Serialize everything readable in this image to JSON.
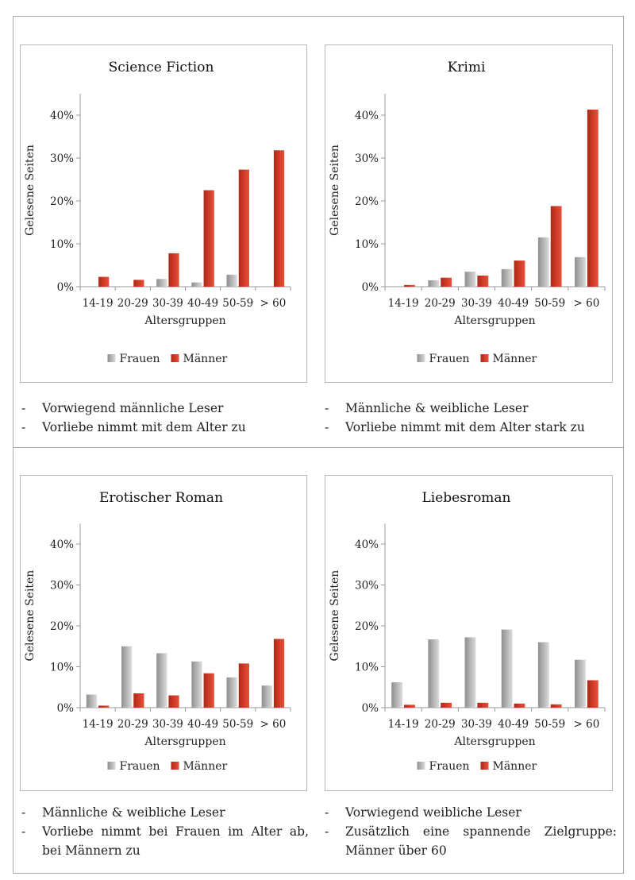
{
  "colors": {
    "frauen": "#b5b5b5",
    "maenner": "#d23a26",
    "axis": "#9a9a9a"
  },
  "shared": {
    "ylabel": "Gelesene Seiten",
    "xlabel": "Altersgruppen",
    "yticks": [
      "0%",
      "10%",
      "20%",
      "30%",
      "40%"
    ],
    "legend": [
      "Frauen",
      "Männer"
    ]
  },
  "chart_data": [
    {
      "type": "bar",
      "title": "Science Fiction",
      "categories": [
        "14-19",
        "20-29",
        "30-39",
        "40-49",
        "50-59",
        "> 60"
      ],
      "series": [
        {
          "name": "Frauen",
          "values": [
            0,
            0,
            1.8,
            1.0,
            2.8,
            0
          ]
        },
        {
          "name": "Männer",
          "values": [
            2.3,
            1.6,
            7.8,
            22.5,
            27.3,
            31.8
          ]
        }
      ],
      "xlabel": "Altersgruppen",
      "ylabel": "Gelesene Seiten",
      "ylim": [
        0,
        45
      ],
      "grid": false,
      "legend": "bottom"
    },
    {
      "type": "bar",
      "title": "Krimi",
      "categories": [
        "14-19",
        "20-29",
        "30-39",
        "40-49",
        "50-59",
        "> 60"
      ],
      "series": [
        {
          "name": "Frauen",
          "values": [
            0,
            1.5,
            3.5,
            4.1,
            11.5,
            6.9
          ]
        },
        {
          "name": "Männer",
          "values": [
            0.4,
            2.1,
            2.6,
            6.1,
            18.8,
            41.3
          ]
        }
      ],
      "xlabel": "Altersgruppen",
      "ylabel": "Gelesene Seiten",
      "ylim": [
        0,
        45
      ],
      "grid": false,
      "legend": "bottom"
    },
    {
      "type": "bar",
      "title": "Erotischer Roman",
      "categories": [
        "14-19",
        "20-29",
        "30-39",
        "40-49",
        "50-59",
        "> 60"
      ],
      "series": [
        {
          "name": "Frauen",
          "values": [
            3.2,
            15.0,
            13.3,
            11.3,
            7.4,
            5.4
          ]
        },
        {
          "name": "Männer",
          "values": [
            0.5,
            3.5,
            3.0,
            8.4,
            10.8,
            16.8
          ]
        }
      ],
      "xlabel": "Altersgruppen",
      "ylabel": "Gelesene Seiten",
      "ylim": [
        0,
        45
      ],
      "grid": false,
      "legend": "bottom"
    },
    {
      "type": "bar",
      "title": "Liebesroman",
      "categories": [
        "14-19",
        "20-29",
        "30-39",
        "40-49",
        "50-59",
        "> 60"
      ],
      "series": [
        {
          "name": "Frauen",
          "values": [
            6.2,
            16.7,
            17.2,
            19.1,
            16.0,
            11.7
          ]
        },
        {
          "name": "Männer",
          "values": [
            0.7,
            1.2,
            1.2,
            1.0,
            0.8,
            6.7
          ]
        }
      ],
      "xlabel": "Altersgruppen",
      "ylabel": "Gelesene Seiten",
      "ylim": [
        0,
        45
      ],
      "grid": false,
      "legend": "bottom"
    }
  ],
  "notes": [
    {
      "dash": "-",
      "items": [
        "Vorwiegend männliche Leser",
        "Vorliebe nimmt mit dem Alter zu"
      ]
    },
    {
      "dash": "-",
      "items": [
        "Männliche & weibliche Leser",
        "Vorliebe nimmt mit dem Alter stark zu"
      ]
    },
    {
      "dash": "-",
      "items": [
        "Männliche & weibliche Leser",
        "Vorliebe nimmt bei Frauen im Alter ab, bei Männern zu"
      ]
    },
    {
      "dash": "-",
      "items": [
        "Vorwiegend weibliche Leser",
        "Zusätzlich eine spannende Zielgruppe: Männer über 60"
      ]
    }
  ]
}
